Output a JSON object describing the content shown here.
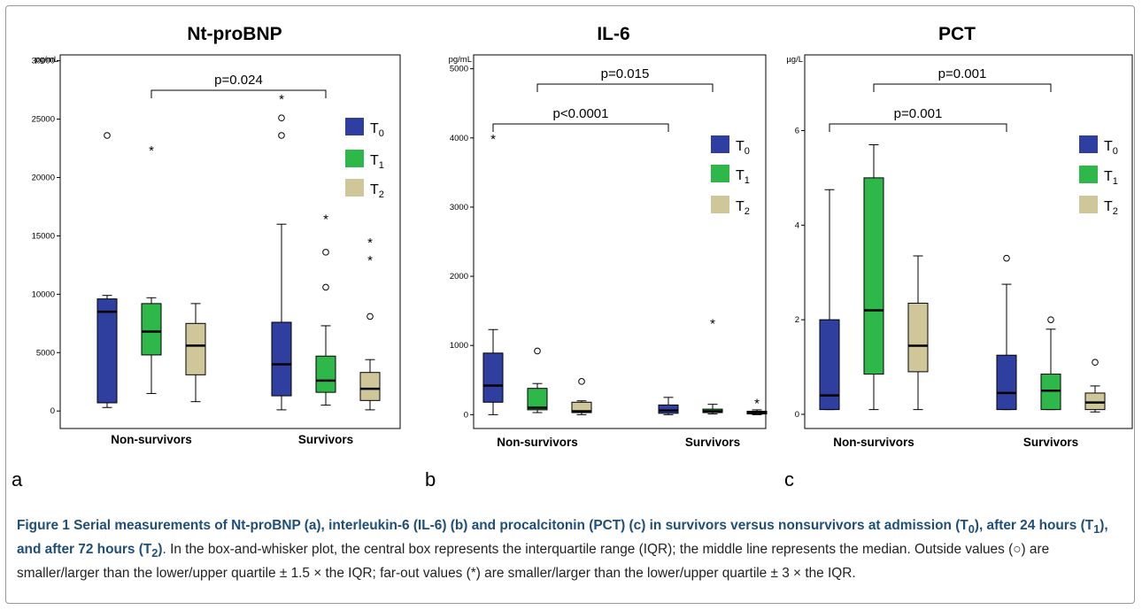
{
  "colors": {
    "T0": "#2e3fa0",
    "T1": "#2eb84a",
    "T2": "#cfc79a"
  },
  "legend_labels": {
    "T0": [
      "T",
      "0"
    ],
    "T1": [
      "T",
      "1"
    ],
    "T2": [
      "T",
      "2"
    ]
  },
  "caption": {
    "title_prefix": "Figure 1",
    "title_part1": "Serial measurements of Nt-proBNP (a), interleukin-6 (IL-6) (b) and procalcitonin (PCT) (c) in survivors versus nonsurvivors at admission (T",
    "sub0": "0",
    "title_part2": "), after 24 hours (T",
    "sub1": "1",
    "title_part3": "), and after 72 hours (T",
    "sub2": "2",
    "title_part4": ")",
    "body": ". In the box-and-whisker plot, the central box represents the interquartile range (IQR); the middle line represents the median. Outside values (○) are smaller/larger than the lower/upper quartile ± 1.5 × the IQR; far-out values (*) are smaller/larger than the lower/upper quartile ± 3 × the IQR."
  },
  "chart_data": [
    {
      "type": "box",
      "panel_letter": "a",
      "title": "Nt-proBNP",
      "unit": "pg/mL",
      "ylim": [
        -1500,
        30500
      ],
      "yticks": [
        0,
        5000,
        10000,
        15000,
        20000,
        25000,
        30000
      ],
      "groups": [
        "Non-survivors",
        "Survivors"
      ],
      "series_keys": [
        "T0",
        "T1",
        "T2"
      ],
      "boxes": [
        {
          "group": "Non-survivors",
          "series": "T0",
          "min": 300,
          "q1": 700,
          "median": 8500,
          "q3": 9600,
          "max": 9900,
          "outliers": [
            23600
          ],
          "extremes": []
        },
        {
          "group": "Non-survivors",
          "series": "T1",
          "min": 1500,
          "q1": 4800,
          "median": 6800,
          "q3": 9200,
          "max": 9700,
          "outliers": [],
          "extremes": [
            22400
          ]
        },
        {
          "group": "Non-survivors",
          "series": "T2",
          "min": 800,
          "q1": 3100,
          "median": 5600,
          "q3": 7500,
          "max": 9200,
          "outliers": [],
          "extremes": []
        },
        {
          "group": "Survivors",
          "series": "T0",
          "min": 100,
          "q1": 1300,
          "median": 4000,
          "q3": 7600,
          "max": 16000,
          "outliers": [
            23600,
            25100
          ],
          "extremes": [
            26800
          ]
        },
        {
          "group": "Survivors",
          "series": "T1",
          "min": 500,
          "q1": 1600,
          "median": 2600,
          "q3": 4700,
          "max": 7300,
          "outliers": [
            10600,
            13600
          ],
          "extremes": [
            16500
          ]
        },
        {
          "group": "Survivors",
          "series": "T2",
          "min": 100,
          "q1": 900,
          "median": 1900,
          "q3": 3300,
          "max": 4400,
          "outliers": [
            8100
          ],
          "extremes": [
            13000,
            14500
          ]
        }
      ],
      "brackets": [
        {
          "label": "p=0.024",
          "from_group": "Non-survivors",
          "to_group": "Survivors",
          "level": 0
        }
      ]
    },
    {
      "type": "box",
      "panel_letter": "b",
      "title": "IL-6",
      "unit": "pg/mL",
      "ylim": [
        -200,
        5200
      ],
      "yticks": [
        0,
        1000,
        2000,
        3000,
        4000,
        5000
      ],
      "groups": [
        "Non-survivors",
        "Survivors"
      ],
      "series_keys": [
        "T0",
        "T1",
        "T2"
      ],
      "boxes": [
        {
          "group": "Non-survivors",
          "series": "T0",
          "min": 0,
          "q1": 180,
          "median": 420,
          "q3": 890,
          "max": 1230,
          "outliers": [],
          "extremes": [
            4000
          ]
        },
        {
          "group": "Non-survivors",
          "series": "T1",
          "min": 30,
          "q1": 70,
          "median": 100,
          "q3": 380,
          "max": 450,
          "outliers": [
            920
          ],
          "extremes": []
        },
        {
          "group": "Non-survivors",
          "series": "T2",
          "min": 0,
          "q1": 30,
          "median": 50,
          "q3": 180,
          "max": 200,
          "outliers": [
            480
          ],
          "extremes": []
        },
        {
          "group": "Survivors",
          "series": "T0",
          "min": 0,
          "q1": 20,
          "median": 60,
          "q3": 140,
          "max": 250,
          "outliers": [],
          "extremes": []
        },
        {
          "group": "Survivors",
          "series": "T1",
          "min": 10,
          "q1": 30,
          "median": 50,
          "q3": 80,
          "max": 150,
          "outliers": [],
          "extremes": [
            1330
          ]
        },
        {
          "group": "Survivors",
          "series": "T2",
          "min": 0,
          "q1": 10,
          "median": 30,
          "q3": 50,
          "max": 70,
          "outliers": [],
          "extremes": [
            180
          ]
        }
      ],
      "brackets": [
        {
          "label": "p<0.0001",
          "from_group": "Non-survivors",
          "to_group": "Survivors",
          "level": 1
        },
        {
          "label": "p=0.015",
          "from_group": "Non-survivors",
          "to_group": "Survivors",
          "level": 0
        }
      ]
    },
    {
      "type": "box",
      "panel_letter": "c",
      "title": "PCT",
      "unit": "µg/L",
      "ylim": [
        -0.3,
        7.6
      ],
      "yticks": [
        0,
        2,
        4,
        6
      ],
      "groups": [
        "Non-survivors",
        "Survivors"
      ],
      "series_keys": [
        "T0",
        "T1",
        "T2"
      ],
      "boxes": [
        {
          "group": "Non-survivors",
          "series": "T0",
          "min": 0.1,
          "q1": 0.1,
          "median": 0.4,
          "q3": 2.0,
          "max": 4.75,
          "outliers": [],
          "extremes": []
        },
        {
          "group": "Non-survivors",
          "series": "T1",
          "min": 0.1,
          "q1": 0.85,
          "median": 2.2,
          "q3": 5.0,
          "max": 5.7,
          "outliers": [],
          "extremes": []
        },
        {
          "group": "Non-survivors",
          "series": "T2",
          "min": 0.1,
          "q1": 0.9,
          "median": 1.45,
          "q3": 2.35,
          "max": 3.35,
          "outliers": [],
          "extremes": []
        },
        {
          "group": "Survivors",
          "series": "T0",
          "min": 0.1,
          "q1": 0.1,
          "median": 0.45,
          "q3": 1.25,
          "max": 2.75,
          "outliers": [
            3.3
          ],
          "extremes": []
        },
        {
          "group": "Survivors",
          "series": "T1",
          "min": 0.1,
          "q1": 0.1,
          "median": 0.5,
          "q3": 0.85,
          "max": 1.8,
          "outliers": [
            2.0
          ],
          "extremes": []
        },
        {
          "group": "Survivors",
          "series": "T2",
          "min": 0.05,
          "q1": 0.1,
          "median": 0.25,
          "q3": 0.45,
          "max": 0.6,
          "outliers": [
            1.1
          ],
          "extremes": []
        }
      ],
      "brackets": [
        {
          "label": "p=0.001",
          "from_group": "Non-survivors",
          "to_group": "Survivors",
          "level": 1
        },
        {
          "label": "p=0.001",
          "from_group": "Non-survivors",
          "to_group": "Survivors",
          "level": 0
        }
      ]
    }
  ]
}
